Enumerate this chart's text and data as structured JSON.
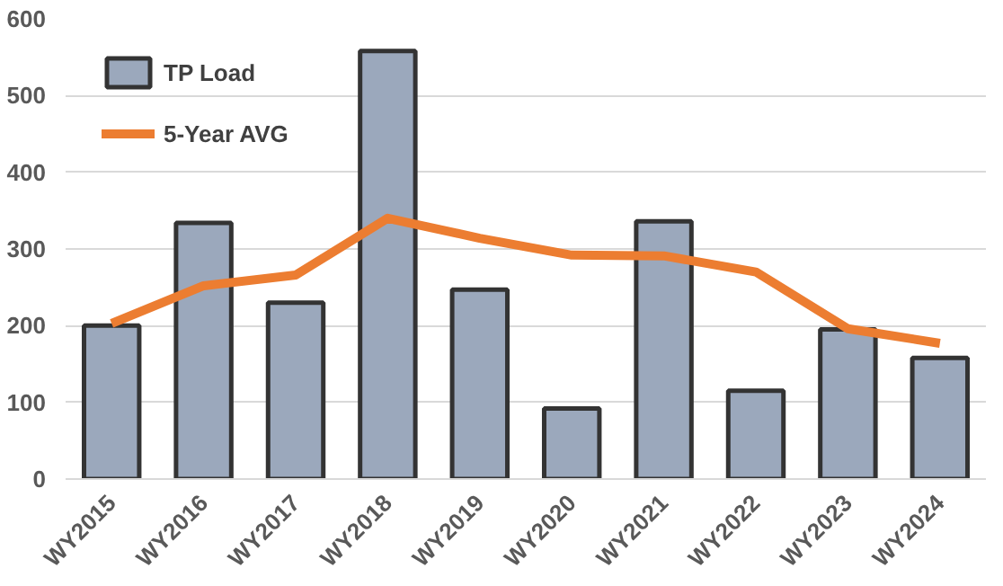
{
  "chart_data": {
    "type": "bar",
    "categories": [
      "WY2015",
      "WY2016",
      "WY2017",
      "WY2018",
      "WY2019",
      "WY2020",
      "WY2021",
      "WY2022",
      "WY2023",
      "WY2024"
    ],
    "series": [
      {
        "name": "TP Load",
        "color": "#9ba8bc",
        "values": [
          200,
          334,
          230,
          558,
          247,
          92,
          336,
          115,
          195,
          158
        ]
      },
      {
        "name": "5-Year AVG",
        "type": "line",
        "color": "#ec7d31",
        "values": [
          203,
          252,
          266,
          340,
          314,
          292,
          291,
          270,
          196,
          177
        ]
      }
    ],
    "ylim": [
      0,
      600
    ],
    "yticks": [
      0,
      100,
      200,
      300,
      400,
      500,
      600
    ],
    "grid": "y",
    "legend": "top left"
  }
}
